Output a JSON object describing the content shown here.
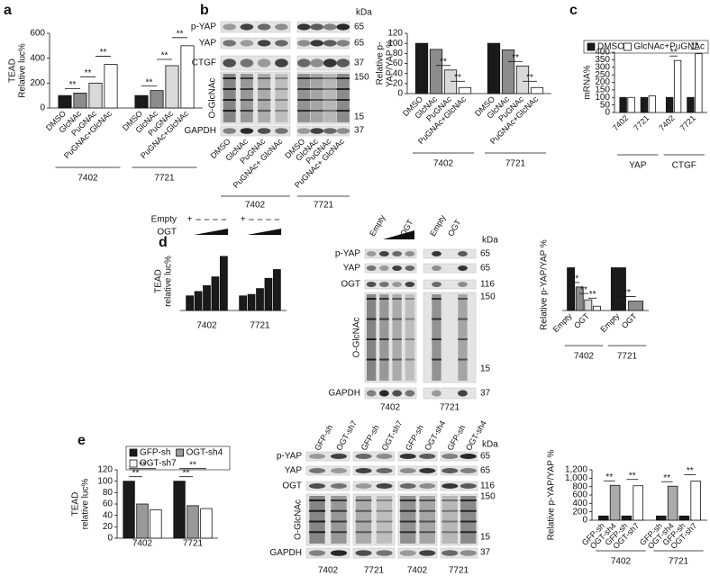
{
  "panels": [
    "a",
    "b",
    "c",
    "d",
    "e"
  ],
  "chart_data": [
    {
      "type": "bar",
      "ylabel": [
        "TEAD",
        "Relative luc%"
      ],
      "ylim": [
        0,
        600
      ],
      "yticks": [
        0,
        200,
        400,
        600
      ],
      "bar_colors": [
        "#1a1a1a",
        "#8c8c8c",
        "#d9d9d9",
        "#ffffff"
      ],
      "significance": "**",
      "groups": [
        {
          "name": "7402",
          "categories": [
            "DMSO",
            "GlcNAc",
            "PuGNAc",
            "PuGNAc+GlcNAc"
          ],
          "values": [
            100,
            120,
            200,
            350
          ],
          "sig": [
            1,
            2,
            3
          ]
        },
        {
          "name": "7721",
          "categories": [
            "DMSO",
            "GlcNAc",
            "PuGNAc",
            "PuGNAc+GlcNAc"
          ],
          "values": [
            100,
            140,
            340,
            500
          ],
          "sig": [
            1,
            2,
            3
          ]
        }
      ]
    },
    {
      "type": "bar",
      "ylabel": [
        "Relative p-",
        "YAP/YAP %"
      ],
      "ylim": [
        0,
        120
      ],
      "yticks": [
        0,
        20,
        40,
        60,
        80,
        100,
        120
      ],
      "bar_colors": [
        "#1a1a1a",
        "#8c8c8c",
        "#d9d9d9",
        "#ffffff"
      ],
      "significance": "**",
      "groups": [
        {
          "name": "7402",
          "categories": [
            "DMSO",
            "GlcNAc",
            "PuGNAc",
            "PuGNAc+GlcNAc"
          ],
          "values": [
            100,
            88,
            47,
            12
          ],
          "sig": [
            2,
            3
          ]
        },
        {
          "name": "7721",
          "categories": [
            "DMSO",
            "GlcNAc",
            "PuGNAc",
            "PuGNAc+GlcNAc"
          ],
          "values": [
            100,
            87,
            55,
            12
          ],
          "sig": [
            2,
            3
          ]
        }
      ]
    },
    {
      "type": "bar",
      "ylabel": [
        "mRNA%"
      ],
      "ylim": [
        0,
        400
      ],
      "yticks": [
        0,
        50,
        100,
        150,
        200,
        250,
        300,
        350,
        400
      ],
      "series": [
        {
          "name": "DMSO",
          "color": "#1a1a1a"
        },
        {
          "name": "GlcNAc+PuGNAc",
          "color": "#ffffff"
        }
      ],
      "significance": "**",
      "groups": [
        {
          "name": "YAP",
          "categories": [
            "7402",
            "7721"
          ],
          "values": [
            [
              100,
              100
            ],
            [
              100,
              110
            ]
          ],
          "sig": []
        },
        {
          "name": "CTGF",
          "categories": [
            "7402",
            "7721"
          ],
          "values": [
            [
              100,
              345
            ],
            [
              100,
              390
            ]
          ],
          "sig": [
            0,
            1
          ]
        }
      ]
    },
    {
      "type": "bar",
      "ylabel": [
        "TEAD",
        "relative luc%"
      ],
      "ylim": [
        0,
        400
      ],
      "color": "#1a1a1a",
      "treatment": {
        "rows": [
          "Empty",
          "OGT"
        ],
        "plus": "+"
      },
      "groups": [
        {
          "name": "7402",
          "values": [
            100,
            130,
            170,
            230,
            370
          ]
        },
        {
          "name": "7721",
          "values": [
            100,
            110,
            150,
            220,
            280
          ]
        }
      ]
    },
    {
      "type": "bar",
      "ylabel": [
        "Relative p-YAP/YAP %"
      ],
      "ylim": [
        0,
        120
      ],
      "bar_colors": [
        "#1a1a1a",
        "#8c8c8c",
        "#d9d9d9",
        "#ffffff"
      ],
      "significance": "**",
      "groups": [
        {
          "name": "7402",
          "categories": [
            "Empty",
            null,
            "OGT",
            null
          ],
          "values": [
            100,
            55,
            25,
            10
          ],
          "sig": [
            1,
            2,
            3
          ]
        },
        {
          "name": "7721",
          "categories": [
            "Empty",
            "OGT"
          ],
          "values": [
            100,
            22
          ],
          "sig": [
            1
          ]
        }
      ]
    },
    {
      "type": "bar",
      "ylabel": [
        "TEAD",
        "relative luc%"
      ],
      "ylim": [
        0,
        120
      ],
      "yticks": [
        0,
        20,
        40,
        60,
        80,
        100,
        120
      ],
      "series": [
        {
          "name": "GFP-sh",
          "color": "#1a1a1a"
        },
        {
          "name": "OGT-sh4",
          "color": "#999999"
        },
        {
          "name": "OGT-sh7",
          "color": "#ffffff"
        }
      ],
      "significance": "**",
      "groups": [
        {
          "name": "7402",
          "values": [
            [
              100,
              60,
              50
            ]
          ],
          "sig": [
            0
          ]
        },
        {
          "name": "7721",
          "values": [
            [
              100,
              57,
              52
            ]
          ],
          "sig": [
            0
          ]
        }
      ]
    },
    {
      "type": "bar",
      "ylabel": [
        "Relative p-YAP/YAP %"
      ],
      "ylim": [
        0,
        1200
      ],
      "yticks": [
        0,
        200,
        400,
        600,
        800,
        {
          "value": 1000,
          "label": "1,000"
        },
        {
          "value": 1200,
          "label": "1,200"
        }
      ],
      "bar_colors": [
        "#1a1a1a",
        "#aaaaaa",
        "#1a1a1a",
        "#ffffff"
      ],
      "significance": "**",
      "groups": [
        {
          "name": "7402",
          "categories": [
            "GFP-sh",
            "OGT-sh4",
            "GFP-sh",
            "OGT-sh7"
          ],
          "values": [
            100,
            830,
            100,
            820
          ],
          "sig": [
            1,
            3
          ]
        },
        {
          "name": "7721",
          "categories": [
            "GFP-sh",
            "OGT-sh4",
            "GFP-sh",
            "OGT-sh7"
          ],
          "values": [
            100,
            810,
            100,
            930
          ],
          "sig": [
            1,
            3
          ]
        }
      ]
    }
  ],
  "blots": [
    {
      "rows": [
        "p-YAP",
        "YAP",
        "CTGF",
        "O-GlcNAc",
        "GAPDH"
      ],
      "kda_unit": "kDa",
      "kda": [
        65,
        65,
        37,
        150,
        15,
        37
      ],
      "lanes": [
        "DMSO",
        "GlcNAc",
        "PuGNAc",
        "PuGNAc+ GlcNAc",
        "DMSO",
        "GlcNAc",
        "PuGNAc",
        "PuGNAc+ GlcNAc"
      ],
      "groups": [
        "7402",
        "7721"
      ]
    },
    {
      "rows": [
        "p-YAP",
        "YAP",
        "OGT",
        "O-GlcNAc",
        "GAPDH"
      ],
      "kda_unit": "kDa",
      "kda": [
        65,
        65,
        116,
        150,
        15,
        37
      ],
      "lanes": [
        "Empty",
        "OGT",
        "Empty",
        "OGT"
      ],
      "groups": [
        "7402",
        "7721"
      ]
    },
    {
      "rows": [
        "p-YAP",
        "YAP",
        "OGT",
        "O-GlcNAc",
        "GAPDH"
      ],
      "kda_unit": "kDa",
      "kda": [
        65,
        65,
        116,
        150,
        15,
        37
      ],
      "lanes": [
        "GFP-sh",
        "OGT-sh7",
        "GFP-sh",
        "OGT-sh7",
        "GFP-sh",
        "OGT-sh4",
        "GFP-sh",
        "OGT-sh4"
      ],
      "groups": [
        "7402",
        "7721",
        "7402",
        "7721"
      ]
    }
  ]
}
